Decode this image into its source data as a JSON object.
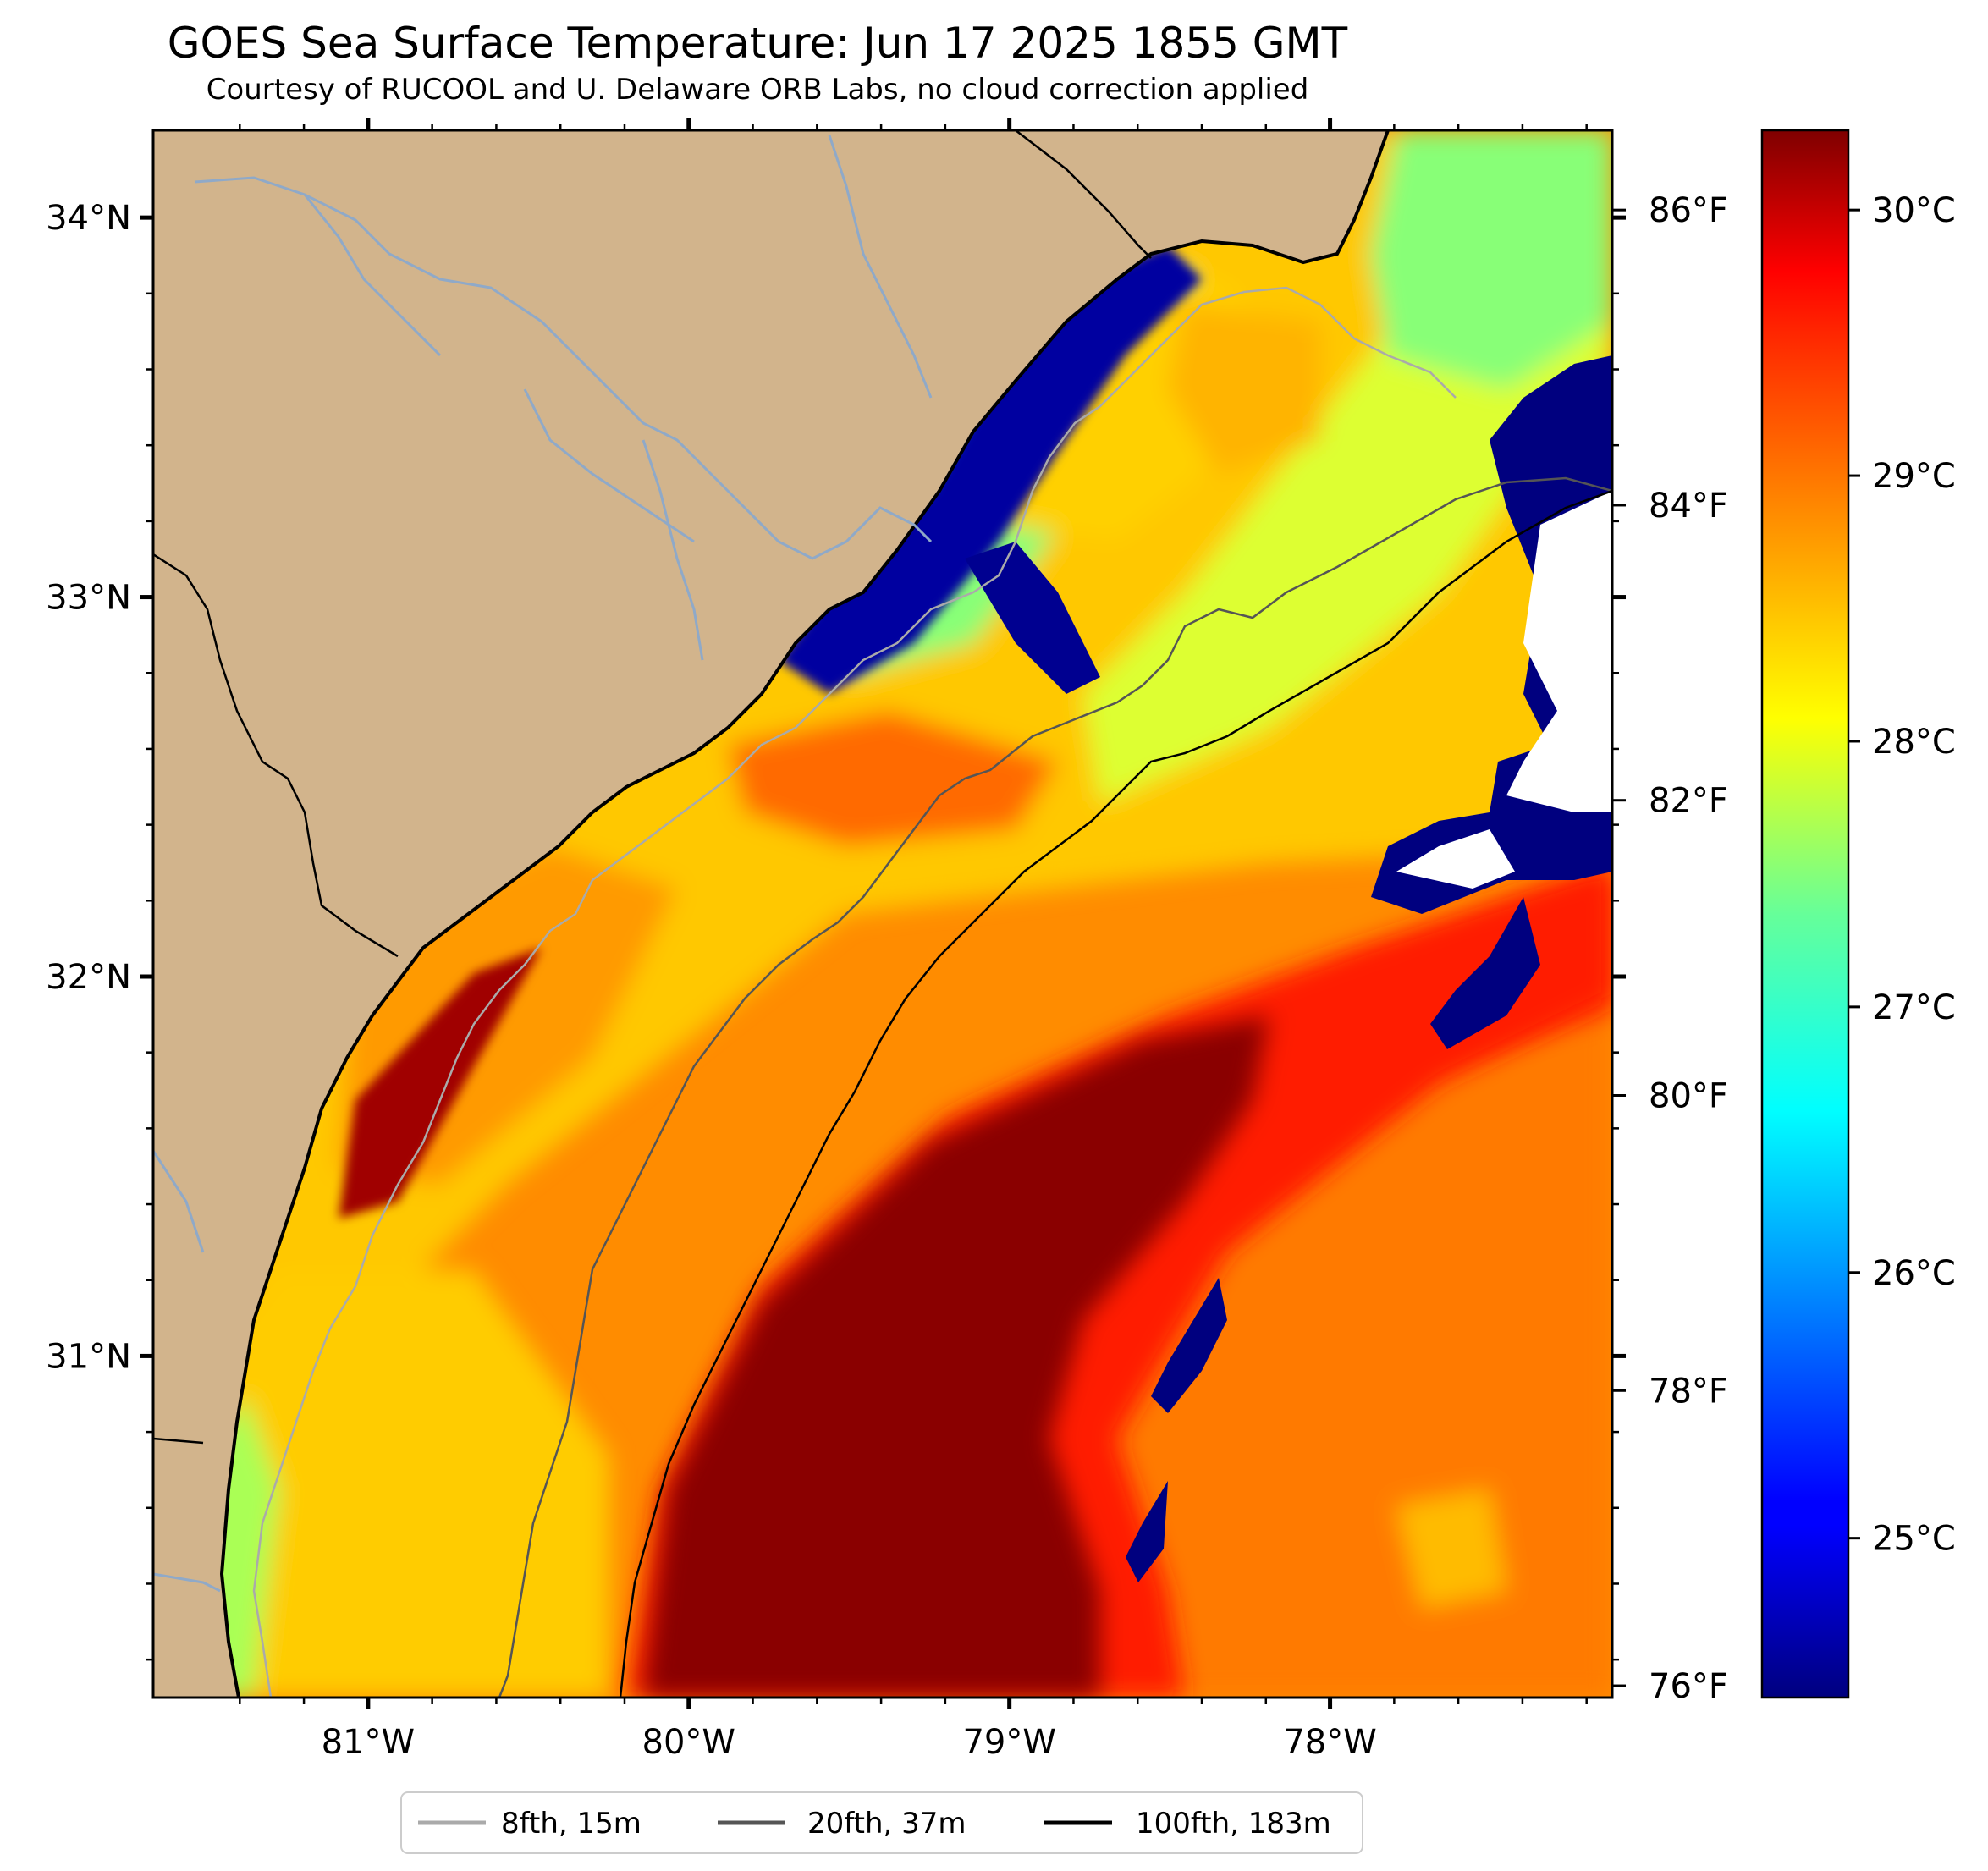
{
  "header": {
    "title": "GOES Sea Surface Temperature: Jun 17 2025 1855 GMT",
    "subtitle": "Courtesy of RUCOOL and U. Delaware ORB Labs, no cloud correction applied"
  },
  "map": {
    "lon_range": [
      -81.67,
      -77.12
    ],
    "lat_range": [
      30.1,
      34.23
    ],
    "lon_ticks": [
      {
        "value": -81,
        "label": "81°W"
      },
      {
        "value": -80,
        "label": "80°W"
      },
      {
        "value": -79,
        "label": "79°W"
      },
      {
        "value": -78,
        "label": "78°W"
      }
    ],
    "lat_ticks": [
      {
        "value": 34,
        "label": "34°N"
      },
      {
        "value": 33,
        "label": "33°N"
      },
      {
        "value": 32,
        "label": "32°N"
      },
      {
        "value": 31,
        "label": "31°N"
      }
    ],
    "fahrenheit_ticks": [
      {
        "value": 86,
        "label": "86°F"
      },
      {
        "value": 84,
        "label": "84°F"
      },
      {
        "value": 82,
        "label": "82°F"
      },
      {
        "value": 80,
        "label": "80°F"
      },
      {
        "value": 78,
        "label": "78°F"
      },
      {
        "value": 76,
        "label": "76°F"
      }
    ],
    "land_color": "#d2b48c",
    "colormap": "jet",
    "colorbar": {
      "unit": "°C",
      "range": [
        24.4,
        30.3
      ],
      "ticks": [
        {
          "value": 30,
          "label": "30°C"
        },
        {
          "value": 29,
          "label": "29°C"
        },
        {
          "value": 28,
          "label": "28°C"
        },
        {
          "value": 27,
          "label": "27°C"
        },
        {
          "value": 26,
          "label": "26°C"
        },
        {
          "value": 25,
          "label": "25°C"
        }
      ]
    }
  },
  "legend": {
    "entries": [
      {
        "label": "8fth, 15m",
        "color": "#aaaaaa"
      },
      {
        "label": "20fth, 37m",
        "color": "#555555"
      },
      {
        "label": "100fth, 183m",
        "color": "#000000"
      }
    ]
  }
}
